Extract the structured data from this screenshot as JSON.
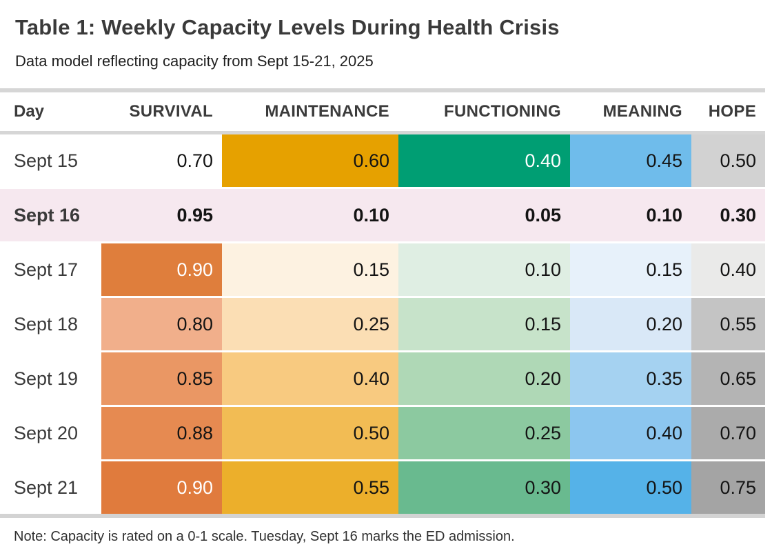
{
  "page": {
    "title": "Table 1: Weekly Capacity Levels During Health Crisis",
    "subtitle": "Data model reflecting capacity from Sept 15-21, 2025",
    "note": "Note: Capacity is rated on a 0-1 scale. Tuesday, Sept 16 marks the ED admission."
  },
  "colors": {
    "rule_gray": "#d6d6d6",
    "highlight_pink": "#f6e8ef",
    "survival_accent": "#df7e3c",
    "maintenance_accent": "#e6a100",
    "functioning_accent": "#009e73",
    "meaning_accent": "#56b4e9",
    "hope_accent": "#9e9e9e"
  },
  "table": {
    "columns": [
      "Day",
      "SURVIVAL",
      "MAINTENANCE",
      "FUNCTIONING",
      "MEANING",
      "HOPE"
    ],
    "column_keys": [
      "survival",
      "maintenance",
      "functioning",
      "meaning",
      "hope"
    ],
    "rows": [
      {
        "day": "Sept 15",
        "bold": false,
        "cells": [
          {
            "text": "0.70",
            "bg": "#ffffff",
            "fg": "#141414"
          },
          {
            "text": "0.60",
            "bg": "#e6a100",
            "fg": "#141414"
          },
          {
            "text": "0.40",
            "bg": "#009e73",
            "fg": "#ffffff"
          },
          {
            "text": "0.45",
            "bg": "#6fbceb",
            "fg": "#141414"
          },
          {
            "text": "0.50",
            "bg": "#d2d2d2",
            "fg": "#141414"
          }
        ]
      },
      {
        "day": "Sept 16",
        "bold": true,
        "cells": [
          {
            "text": "0.95",
            "bg": "#f6e8ef",
            "fg": "#141414"
          },
          {
            "text": "0.10",
            "bg": "#f6e8ef",
            "fg": "#141414"
          },
          {
            "text": "0.05",
            "bg": "#f6e8ef",
            "fg": "#141414"
          },
          {
            "text": "0.10",
            "bg": "#f6e8ef",
            "fg": "#141414"
          },
          {
            "text": "0.30",
            "bg": "#f6e8ef",
            "fg": "#141414"
          }
        ]
      },
      {
        "day": "Sept 17",
        "bold": false,
        "cells": [
          {
            "text": "0.90",
            "bg": "#df7e3c",
            "fg": "#ffffff"
          },
          {
            "text": "0.15",
            "bg": "#fdf2e1",
            "fg": "#141414"
          },
          {
            "text": "0.10",
            "bg": "#dfeee3",
            "fg": "#141414"
          },
          {
            "text": "0.15",
            "bg": "#e7f1fa",
            "fg": "#141414"
          },
          {
            "text": "0.40",
            "bg": "#eaeae9",
            "fg": "#141414"
          }
        ]
      },
      {
        "day": "Sept 18",
        "bold": false,
        "cells": [
          {
            "text": "0.80",
            "bg": "#f1af8b",
            "fg": "#141414"
          },
          {
            "text": "0.25",
            "bg": "#fbdeb4",
            "fg": "#141414"
          },
          {
            "text": "0.15",
            "bg": "#c7e3ca",
            "fg": "#141414"
          },
          {
            "text": "0.20",
            "bg": "#d9e8f7",
            "fg": "#141414"
          },
          {
            "text": "0.55",
            "bg": "#c4c4c4",
            "fg": "#141414"
          }
        ]
      },
      {
        "day": "Sept 19",
        "bold": false,
        "cells": [
          {
            "text": "0.85",
            "bg": "#ea9764",
            "fg": "#141414"
          },
          {
            "text": "0.40",
            "bg": "#f8ca80",
            "fg": "#141414"
          },
          {
            "text": "0.20",
            "bg": "#afd8b6",
            "fg": "#141414"
          },
          {
            "text": "0.35",
            "bg": "#a5d2f1",
            "fg": "#141414"
          },
          {
            "text": "0.65",
            "bg": "#b4b4b4",
            "fg": "#141414"
          }
        ]
      },
      {
        "day": "Sept 20",
        "bold": false,
        "cells": [
          {
            "text": "0.88",
            "bg": "#e68a51",
            "fg": "#141414"
          },
          {
            "text": "0.50",
            "bg": "#f2bc54",
            "fg": "#141414"
          },
          {
            "text": "0.25",
            "bg": "#8cc9a0",
            "fg": "#141414"
          },
          {
            "text": "0.40",
            "bg": "#8cc6ef",
            "fg": "#141414"
          },
          {
            "text": "0.70",
            "bg": "#ababab",
            "fg": "#141414"
          }
        ]
      },
      {
        "day": "Sept 21",
        "bold": false,
        "cells": [
          {
            "text": "0.90",
            "bg": "#e07b3d",
            "fg": "#ffffff"
          },
          {
            "text": "0.55",
            "bg": "#ecaf2b",
            "fg": "#141414"
          },
          {
            "text": "0.30",
            "bg": "#69ba8f",
            "fg": "#141414"
          },
          {
            "text": "0.50",
            "bg": "#55b2e8",
            "fg": "#141414"
          },
          {
            "text": "0.75",
            "bg": "#a4a4a4",
            "fg": "#141414"
          }
        ]
      }
    ]
  },
  "chart_data": {
    "type": "table",
    "title": "Table 1: Weekly Capacity Levels During Health Crisis",
    "subtitle": "Data model reflecting capacity from Sept 15-21, 2025",
    "note": "Note: Capacity is rated on a 0-1 scale. Tuesday, Sept 16 marks the ED admission.",
    "columns": [
      "Day",
      "SURVIVAL",
      "MAINTENANCE",
      "FUNCTIONING",
      "MEANING",
      "HOPE"
    ],
    "rows": [
      [
        "Sept 15",
        0.7,
        0.6,
        0.4,
        0.45,
        0.5
      ],
      [
        "Sept 16",
        0.95,
        0.1,
        0.05,
        0.1,
        0.3
      ],
      [
        "Sept 17",
        0.9,
        0.15,
        0.1,
        0.15,
        0.4
      ],
      [
        "Sept 18",
        0.8,
        0.25,
        0.15,
        0.2,
        0.55
      ],
      [
        "Sept 19",
        0.85,
        0.4,
        0.2,
        0.35,
        0.65
      ],
      [
        "Sept 20",
        0.88,
        0.5,
        0.25,
        0.4,
        0.7
      ],
      [
        "Sept 21",
        0.9,
        0.55,
        0.3,
        0.5,
        0.75
      ]
    ],
    "highlight_row": "Sept 16",
    "value_range": [
      0,
      1
    ],
    "cell_shading": "alpha scaled to value within each column; column hues: survival vermillion, maintenance gold, functioning green, meaning sky blue, hope gray"
  }
}
